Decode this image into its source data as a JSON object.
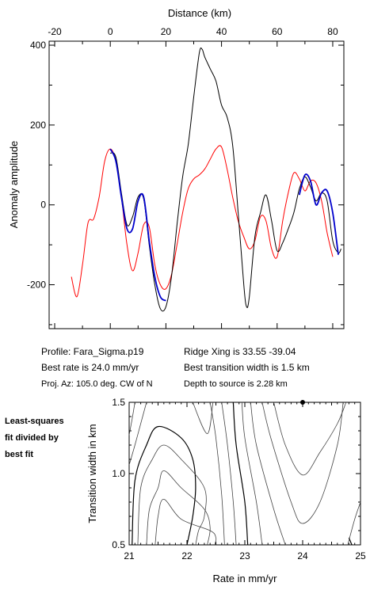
{
  "info": {
    "profile": "Profile: Fara_Sigma.p19",
    "best_rate": "Best rate is 24.0 mm/yr",
    "proj_az": "Proj. Az: 105.0 deg. CW of N",
    "ridge_xing": "Ridge Xing is 33.55 -39.04",
    "transition": "Best transition width is 1.5 km",
    "depth": "Depth to source is   2.28 km"
  },
  "side_note": [
    "Least-squares",
    "fit divided by",
    "best fit"
  ],
  "colors": {
    "observed": "#000000",
    "model": "#ff0000",
    "fit": "#0000cc",
    "contour": "#444444"
  },
  "chart_data": [
    {
      "type": "line",
      "xlabel": "Distance (km)",
      "ylabel": "Anomaly amplitude",
      "xlim": [
        -22,
        84
      ],
      "ylim": [
        -310,
        410
      ],
      "xticks": [
        -20,
        0,
        20,
        40,
        60,
        80
      ],
      "yticks": [
        -200,
        0,
        200,
        400
      ],
      "series": [
        {
          "key": "observed",
          "x": [
            0,
            2,
            4,
            6,
            8,
            10,
            12,
            14,
            16,
            18,
            20,
            22,
            24,
            26,
            28,
            30,
            32,
            33,
            34,
            36,
            38,
            40,
            42,
            44,
            46,
            48,
            49,
            50,
            52,
            54,
            56,
            58,
            60,
            62,
            64,
            66,
            68,
            70,
            72,
            74,
            76,
            78,
            80,
            82,
            83
          ],
          "y": [
            130,
            120,
            30,
            -50,
            -30,
            20,
            15,
            -100,
            -200,
            -260,
            -255,
            -180,
            -50,
            70,
            150,
            270,
            380,
            390,
            370,
            340,
            310,
            250,
            220,
            150,
            -20,
            -200,
            -255,
            -230,
            -80,
            -20,
            25,
            -40,
            -115,
            -95,
            -60,
            -20,
            40,
            70,
            45,
            10,
            30,
            10,
            -90,
            -120,
            -110
          ]
        },
        {
          "key": "model",
          "x": [
            -14,
            -12,
            -10,
            -8,
            -6,
            -4,
            -2,
            0,
            2,
            4,
            6,
            8,
            10,
            12,
            14,
            16,
            18,
            20,
            22,
            24,
            26,
            28,
            30,
            32,
            34,
            36,
            38,
            40,
            42,
            44,
            46,
            48,
            50,
            52,
            54,
            56,
            58,
            60,
            62,
            64,
            66,
            68,
            70,
            72,
            74,
            76,
            78,
            80
          ],
          "y": [
            -180,
            -230,
            -150,
            -45,
            -35,
            20,
            110,
            140,
            110,
            20,
            -100,
            -165,
            -120,
            -50,
            -55,
            -150,
            -200,
            -210,
            -175,
            -100,
            -20,
            40,
            65,
            75,
            90,
            115,
            140,
            145,
            90,
            20,
            -40,
            -80,
            -110,
            -90,
            -30,
            -40,
            -110,
            -130,
            -40,
            30,
            80,
            65,
            35,
            60,
            55,
            10,
            -70,
            -130
          ]
        },
        {
          "key": "fit",
          "x": [
            0,
            2,
            4,
            6,
            8,
            10,
            12,
            14,
            16,
            18,
            20,
            68,
            70,
            72,
            74,
            76,
            78,
            80,
            82
          ],
          "y": [
            140,
            110,
            20,
            -60,
            -60,
            10,
            20,
            -90,
            -180,
            -230,
            -240,
            25,
            75,
            60,
            0,
            30,
            35,
            -20,
            -125
          ]
        }
      ]
    },
    {
      "type": "contour",
      "xlabel": "Rate in mm/yr",
      "ylabel": "Transition width in km",
      "xlim": [
        21,
        25
      ],
      "ylim": [
        0.5,
        1.5
      ],
      "xticks": [
        21,
        22,
        23,
        24,
        25
      ],
      "yticks": [
        0.5,
        1.0,
        1.5
      ],
      "best_fit_point": {
        "x": 24.0,
        "y": 1.5
      },
      "contours": [
        {
          "x": [
            21.0,
            21.05,
            21.1
          ],
          "y": [
            1.27,
            1.38,
            1.5
          ]
        },
        {
          "x": [
            21.0,
            21.1,
            21.2,
            21.3
          ],
          "y": [
            1.06,
            1.2,
            1.35,
            1.5
          ]
        },
        {
          "x": [
            21.05,
            21.1,
            21.3,
            21.5,
            21.9,
            22.1,
            22.15,
            22.1,
            22.0
          ],
          "y": [
            0.5,
            0.95,
            1.2,
            1.33,
            1.25,
            1.1,
            0.9,
            0.7,
            0.5
          ]
        },
        {
          "x": [
            21.15,
            21.2,
            21.4,
            21.6,
            21.9,
            22.3,
            22.3,
            22.2,
            22.15
          ],
          "y": [
            0.5,
            0.9,
            1.1,
            1.2,
            1.1,
            0.9,
            0.7,
            0.6,
            0.5
          ]
        },
        {
          "x": [
            21.3,
            21.35,
            21.5,
            21.6,
            21.9,
            22.3,
            22.4,
            22.35
          ],
          "y": [
            0.5,
            0.75,
            0.9,
            1.02,
            0.9,
            0.75,
            0.62,
            0.5
          ]
        },
        {
          "x": [
            21.45,
            21.5,
            21.6,
            21.9,
            22.4,
            22.5,
            22.48
          ],
          "y": [
            0.5,
            0.7,
            0.82,
            0.68,
            0.6,
            0.55,
            0.5
          ]
        },
        {
          "x": [
            22.1,
            22.35,
            22.45
          ],
          "y": [
            1.5,
            1.28,
            1.5
          ]
        },
        {
          "x": [
            22.4,
            22.5,
            22.6,
            22.65
          ],
          "y": [
            1.5,
            1.25,
            0.85,
            0.5
          ]
        },
        {
          "x": [
            22.6,
            22.7,
            22.8,
            22.85
          ],
          "y": [
            1.5,
            1.2,
            0.8,
            0.5
          ]
        },
        {
          "x": [
            22.8,
            22.85,
            23.0,
            23.05
          ],
          "y": [
            1.5,
            1.2,
            0.8,
            0.5
          ]
        },
        {
          "x": [
            22.95,
            23.0,
            23.2,
            23.3
          ],
          "y": [
            1.5,
            1.25,
            0.8,
            0.5
          ]
        },
        {
          "x": [
            23.1,
            23.2,
            23.5,
            23.7
          ],
          "y": [
            1.5,
            1.2,
            0.75,
            0.5
          ]
        },
        {
          "x": [
            23.3,
            23.45,
            23.8,
            24.0,
            24.3,
            24.6,
            24.7
          ],
          "y": [
            1.5,
            1.25,
            0.8,
            0.65,
            0.8,
            1.2,
            1.5
          ]
        },
        {
          "x": [
            23.5,
            23.7,
            24.0,
            24.3,
            24.6,
            24.75
          ],
          "y": [
            1.5,
            1.2,
            0.99,
            1.15,
            1.35,
            1.5
          ]
        },
        {
          "x": [
            24.8,
            24.85
          ],
          "y": [
            0.55,
            0.5
          ]
        },
        {
          "x": [
            24.78,
            24.9,
            25.0
          ],
          "y": [
            0.5,
            0.68,
            0.8
          ]
        }
      ]
    }
  ]
}
